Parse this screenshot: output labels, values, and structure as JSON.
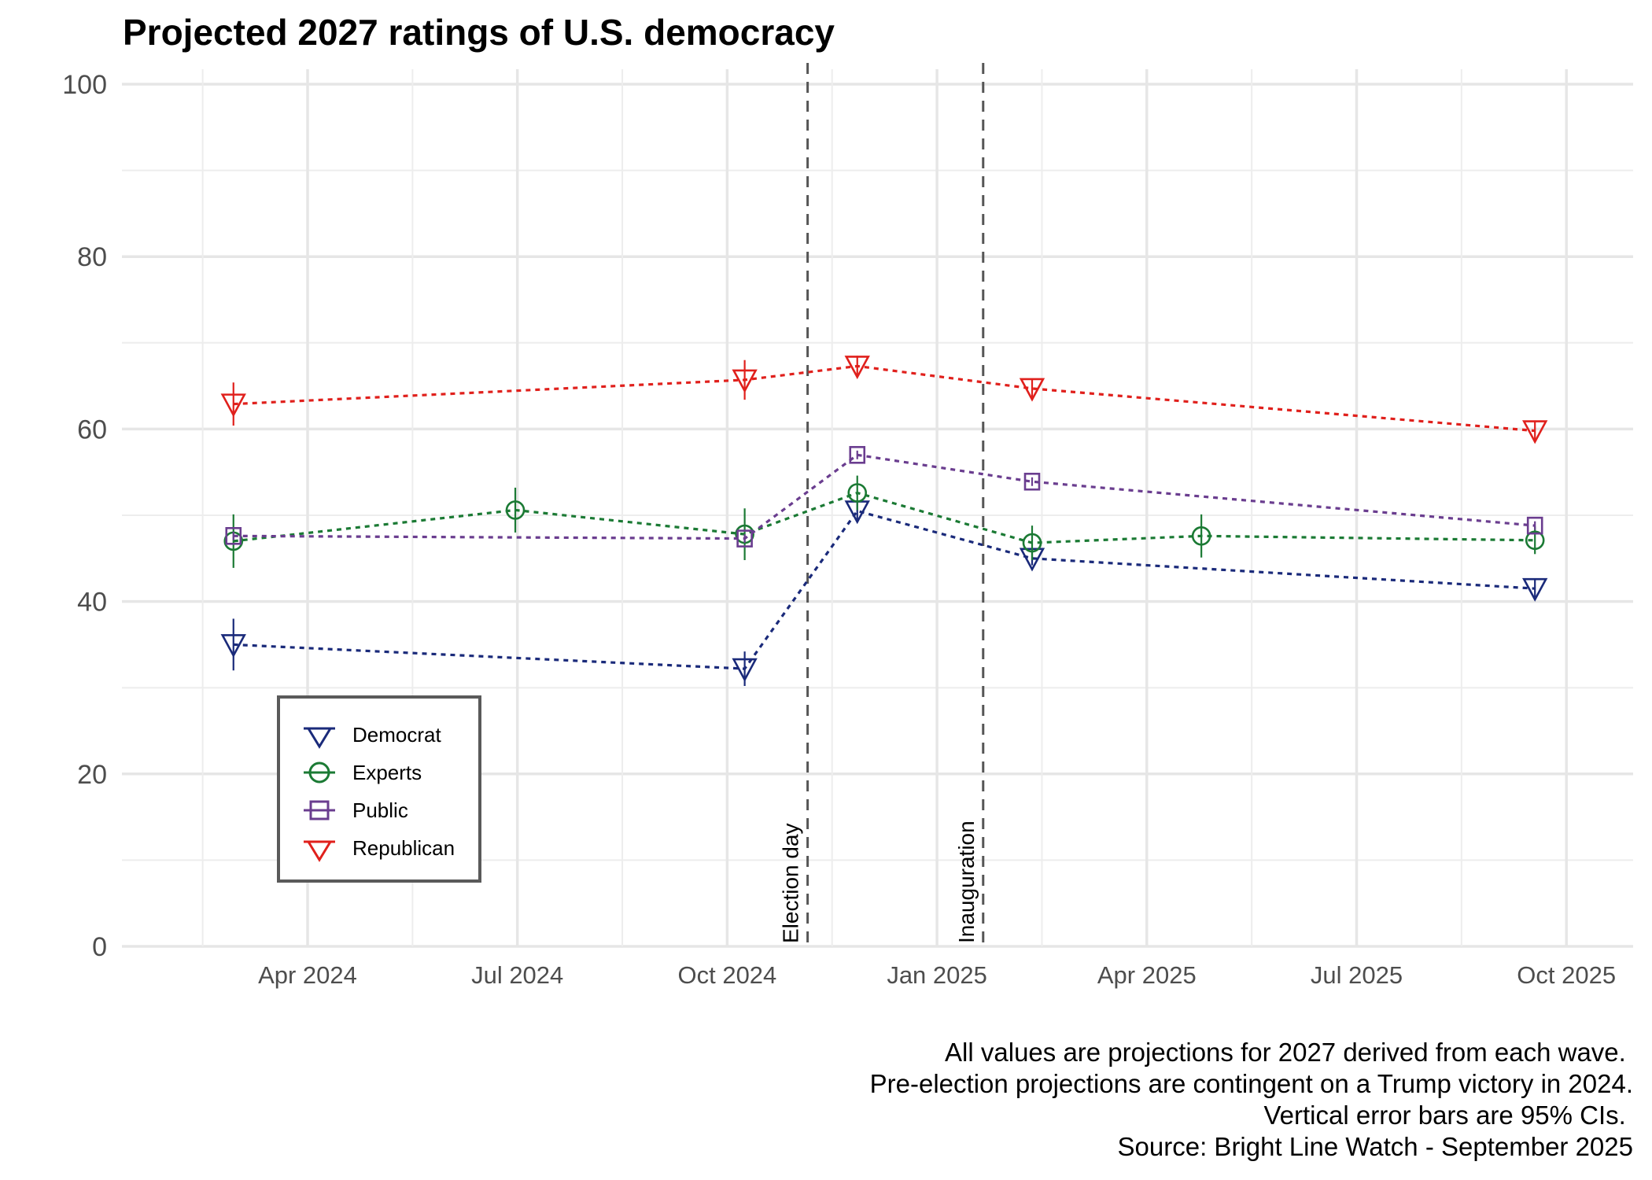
{
  "chart_data": {
    "type": "line",
    "title": "Projected 2027 ratings of U.S. democracy",
    "xlabel": "",
    "ylabel": "",
    "x_unit": "months since Jan 2024",
    "xlim": [
      0.2,
      21.8
    ],
    "ylim": [
      0,
      100
    ],
    "y_ticks": [
      0,
      20,
      40,
      60,
      80,
      100
    ],
    "y_tick_labels": [
      "0",
      "20",
      "40",
      "60",
      "80",
      "100"
    ],
    "x_ticks": [
      3,
      6,
      9,
      12,
      15,
      18,
      21
    ],
    "x_tick_labels": [
      "Apr 2024",
      "Jul 2024",
      "Oct 2024",
      "Jan 2025",
      "Apr 2025",
      "Jul 2025",
      "Oct 2025"
    ],
    "grid": true,
    "legend_position": "bottom-left inside",
    "vlines": [
      {
        "x": 10.15,
        "label": "Election day"
      },
      {
        "x": 12.66,
        "label": "Inauguration"
      }
    ],
    "series": [
      {
        "name": "Democrat",
        "color": "#1a2a7a",
        "marker": "triangle-down",
        "x": [
          1.94,
          9.25,
          10.86,
          13.36,
          20.55
        ],
        "y": [
          35.0,
          32.2,
          50.5,
          45.0,
          41.5
        ],
        "ci": [
          3.0,
          2.0,
          1.0,
          0.8,
          1.0
        ]
      },
      {
        "name": "Experts",
        "color": "#1b7a34",
        "marker": "circle",
        "x": [
          1.94,
          5.97,
          9.25,
          10.86,
          13.36,
          15.78,
          20.55
        ],
        "y": [
          47.0,
          50.6,
          47.8,
          52.6,
          46.8,
          47.6,
          47.1
        ],
        "ci": [
          3.1,
          2.6,
          3.0,
          2.0,
          2.0,
          2.5,
          1.6
        ]
      },
      {
        "name": "Public",
        "color": "#6a3d8f",
        "marker": "square",
        "x": [
          1.94,
          9.25,
          10.86,
          13.36,
          20.55
        ],
        "y": [
          47.6,
          47.3,
          57.0,
          53.9,
          48.8
        ],
        "ci": [
          0.5,
          0.5,
          0.5,
          0.5,
          0.5
        ]
      },
      {
        "name": "Republican",
        "color": "#e0201c",
        "marker": "triangle-down",
        "x": [
          1.94,
          9.25,
          10.86,
          13.36,
          20.55
        ],
        "y": [
          62.9,
          65.7,
          67.3,
          64.7,
          59.8
        ],
        "ci": [
          2.5,
          2.3,
          1.2,
          1.0,
          1.2
        ]
      }
    ]
  },
  "caption": [
    "All values are projections for 2027 derived from each wave. ",
    "Pre-election projections are contingent on a Trump victory in 2024.",
    "Vertical error bars are 95% CIs. ",
    "Source: Bright Line Watch - September 2025"
  ]
}
